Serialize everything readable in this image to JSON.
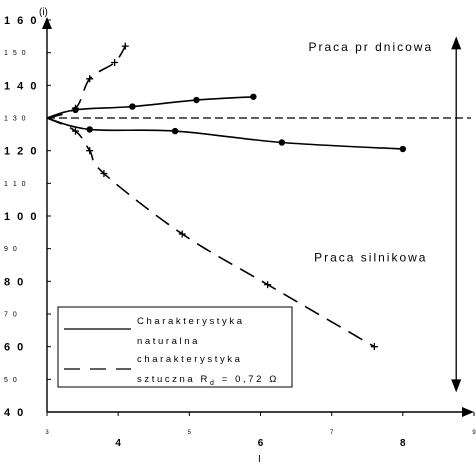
{
  "chart_data": {
    "type": "line",
    "xlabel": "I",
    "ylabel": "(i)",
    "xlim": [
      3,
      9
    ],
    "ylim": [
      40,
      160
    ],
    "x_ticks": [
      {
        "value": 3,
        "label": "3",
        "major": false
      },
      {
        "value": 4,
        "label": "4",
        "major": true
      },
      {
        "value": 5,
        "label": "5",
        "major": false
      },
      {
        "value": 6,
        "label": "6",
        "major": true
      },
      {
        "value": 7,
        "label": "7",
        "major": false
      },
      {
        "value": 8,
        "label": "8",
        "major": true
      },
      {
        "value": 9,
        "label": "9",
        "major": false
      }
    ],
    "y_ticks": [
      {
        "value": 40,
        "label": "4 0",
        "major": true
      },
      {
        "value": 50,
        "label": "5 0",
        "major": false
      },
      {
        "value": 60,
        "label": "6 0",
        "major": true
      },
      {
        "value": 70,
        "label": "7 0",
        "major": false
      },
      {
        "value": 80,
        "label": "8 0",
        "major": true
      },
      {
        "value": 90,
        "label": "9 0",
        "major": false
      },
      {
        "value": 100,
        "label": "1 0 0",
        "major": true
      },
      {
        "value": 110,
        "label": "1 1 0",
        "major": false
      },
      {
        "value": 120,
        "label": "1 2 0",
        "major": true
      },
      {
        "value": 130,
        "label": "1 3 0",
        "major": false
      },
      {
        "value": 140,
        "label": "1 4 0",
        "major": true
      },
      {
        "value": 150,
        "label": "1 5 0",
        "major": false
      },
      {
        "value": 160,
        "label": "1 6 0",
        "major": true
      }
    ],
    "reference_line": {
      "y": 130,
      "style": "dashed"
    },
    "series": [
      {
        "name": "Charakterystyka naturalna",
        "style": "solid",
        "marker": "dot",
        "points": [
          [
            3,
            130
          ],
          [
            3.4,
            132.5
          ],
          [
            4.2,
            133.5
          ],
          [
            5.1,
            135.5
          ],
          [
            5.9,
            136.5
          ]
        ]
      },
      {
        "name": "Charakterystyka naturalna",
        "style": "solid",
        "marker": "dot",
        "points": [
          [
            3,
            130
          ],
          [
            3.6,
            126.5
          ],
          [
            4.8,
            126
          ],
          [
            6.3,
            122.5
          ],
          [
            8,
            120.5
          ]
        ]
      },
      {
        "name": "charakterystyka sztuczna R_d = 0,72 Ω",
        "style": "dashed",
        "marker": "plus",
        "points": [
          [
            3,
            130
          ],
          [
            3.4,
            133
          ],
          [
            3.6,
            142
          ],
          [
            3.95,
            147
          ],
          [
            4.1,
            152
          ]
        ]
      },
      {
        "name": "charakterystyka sztuczna R_d = 0,72 Ω",
        "style": "dashed",
        "marker": "plus",
        "points": [
          [
            3,
            130
          ],
          [
            3.4,
            126
          ],
          [
            3.6,
            120
          ],
          [
            3.8,
            113
          ],
          [
            4.9,
            94.5
          ],
          [
            6.1,
            79
          ],
          [
            7.6,
            60
          ]
        ]
      }
    ],
    "annotations": [
      {
        "text": "Praca pr  dnicowa",
        "x": 7.55,
        "y": 150.5
      },
      {
        "text": "Praca silnikowa",
        "x": 7.55,
        "y": 86
      }
    ],
    "legend": {
      "position": "bottom-left",
      "entries": [
        {
          "line1": "Charakterystyka",
          "line2": "naturalna",
          "style": "solid"
        },
        {
          "line1": "charakterystyka",
          "line2_main": "sztuczna R",
          "line2_sub": "d",
          "line2_tail": " = 0,72 Ω",
          "style": "dashed"
        }
      ]
    },
    "double_arrow": {
      "x": 8.75,
      "y_from": 46,
      "y_to": 155
    },
    "grid": false
  }
}
